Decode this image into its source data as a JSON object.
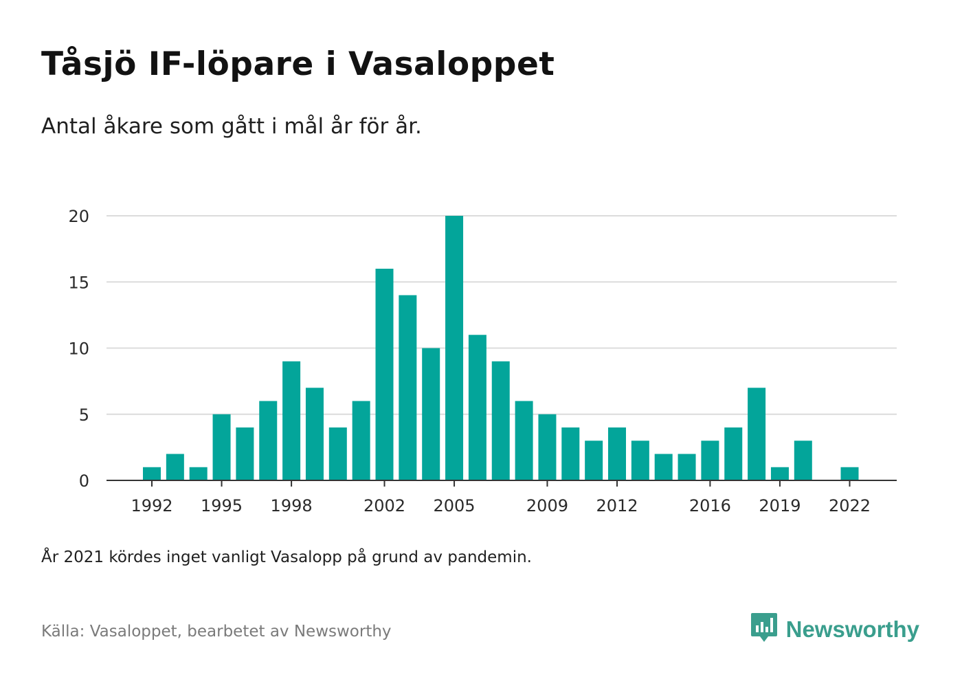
{
  "header": {
    "title": "Tåsjö IF-löpare i Vasaloppet",
    "subtitle": "Antal åkare som gått i mål år för år."
  },
  "footer": {
    "note": "År 2021 kördes inget vanligt Vasalopp på grund av pandemin.",
    "source": "Källa: Vasaloppet, bearbetet av Newsworthy",
    "brand_name": "Newsworthy",
    "brand_icon": "newsworthy-logo-icon"
  },
  "colors": {
    "bar": "#03a59a",
    "grid": "#dcdcdc",
    "axis": "#333333",
    "brand": "#3a9e8d"
  },
  "chart_data": {
    "type": "bar",
    "title": "Tåsjö IF-löpare i Vasaloppet",
    "subtitle": "Antal åkare som gått i mål år för år.",
    "xlabel": "",
    "ylabel": "",
    "x": [
      1992,
      1993,
      1994,
      1995,
      1996,
      1997,
      1998,
      1999,
      2000,
      2001,
      2002,
      2003,
      2004,
      2005,
      2006,
      2007,
      2008,
      2009,
      2010,
      2011,
      2012,
      2013,
      2014,
      2015,
      2016,
      2017,
      2018,
      2019,
      2020,
      2022
    ],
    "values": [
      1,
      2,
      1,
      5,
      4,
      6,
      9,
      7,
      4,
      6,
      16,
      14,
      10,
      20,
      11,
      9,
      6,
      5,
      4,
      3,
      4,
      3,
      2,
      2,
      3,
      4,
      7,
      1,
      3,
      1
    ],
    "xlim": [
      1989.5,
      2023.5
    ],
    "ylim": [
      0,
      20
    ],
    "y_ticks": [
      0,
      5,
      10,
      15,
      20
    ],
    "x_ticks": [
      1992,
      1995,
      1998,
      2002,
      2005,
      2009,
      2012,
      2016,
      2019,
      2022
    ],
    "grid": true,
    "legend": "none"
  }
}
